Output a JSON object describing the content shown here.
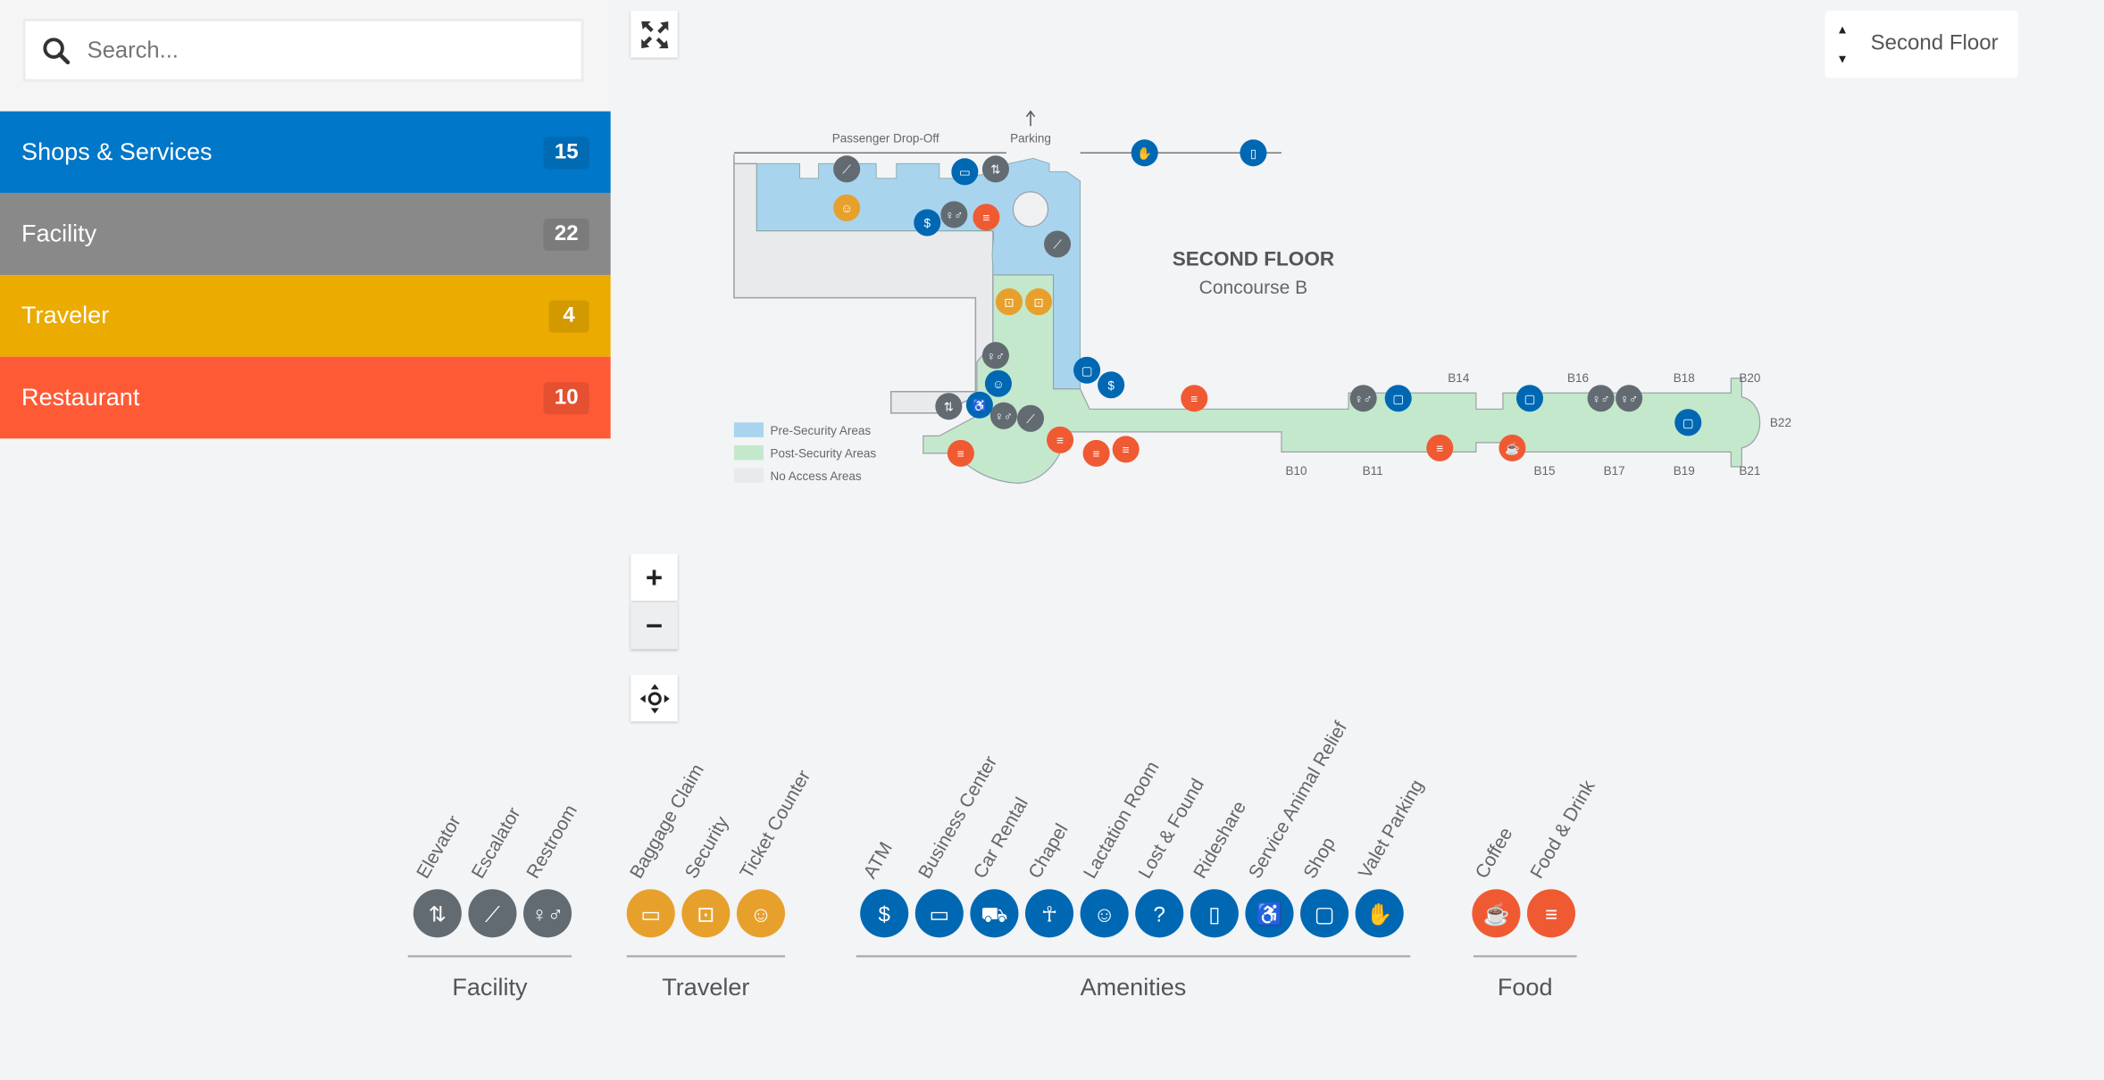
{
  "search": {
    "placeholder": "Search...",
    "value": ""
  },
  "categories": [
    {
      "label": "Shops & Services",
      "count": "15",
      "color": "#0077c8"
    },
    {
      "label": "Facility",
      "count": "22",
      "color": "#898989"
    },
    {
      "label": "Traveler",
      "count": "4",
      "color": "#ebab00"
    },
    {
      "label": "Restaurant",
      "count": "10",
      "color": "#ff5a36"
    }
  ],
  "floor_selector": {
    "value": "Second Floor"
  },
  "controls": {
    "zoom_in": "+",
    "zoom_out": "−"
  },
  "map": {
    "title": "SECOND FLOOR",
    "subtitle": "Concourse B",
    "labels": {
      "dropoff": "Passenger Drop-Off",
      "parking": "Parking"
    },
    "gates": [
      "B14",
      "B16",
      "B18",
      "B20",
      "B22",
      "B10",
      "B11",
      "B15",
      "B17",
      "B19",
      "B21"
    ],
    "area_legend": [
      {
        "label": "Pre-Security Areas",
        "color": "#a9d4ee"
      },
      {
        "label": "Post-Security Areas",
        "color": "#c4e8cc"
      },
      {
        "label": "No Access Areas",
        "color": "#e9eaec"
      }
    ],
    "markers": [
      {
        "icon": "escalator",
        "category": "facility"
      },
      {
        "icon": "business-center",
        "category": "amenities"
      },
      {
        "icon": "elevator",
        "category": "facility"
      },
      {
        "icon": "ticket-counter",
        "category": "traveler"
      },
      {
        "icon": "atm",
        "category": "amenities"
      },
      {
        "icon": "restroom",
        "category": "facility"
      },
      {
        "icon": "food-drink",
        "category": "food"
      },
      {
        "icon": "escalator",
        "category": "facility"
      },
      {
        "icon": "security",
        "category": "traveler"
      },
      {
        "icon": "security",
        "category": "traveler"
      },
      {
        "icon": "restroom",
        "category": "facility"
      },
      {
        "icon": "lactation-room",
        "category": "amenities"
      },
      {
        "icon": "shop",
        "category": "amenities"
      },
      {
        "icon": "atm",
        "category": "amenities"
      },
      {
        "icon": "elevator",
        "category": "facility"
      },
      {
        "icon": "service-animal-relief",
        "category": "amenities"
      },
      {
        "icon": "restroom",
        "category": "facility"
      },
      {
        "icon": "escalator",
        "category": "facility"
      },
      {
        "icon": "food-drink",
        "category": "food"
      },
      {
        "icon": "food-drink",
        "category": "food"
      },
      {
        "icon": "food-drink",
        "category": "food"
      },
      {
        "icon": "food-drink",
        "category": "food"
      },
      {
        "icon": "food-drink",
        "category": "food"
      },
      {
        "icon": "restroom",
        "category": "facility"
      },
      {
        "icon": "shop",
        "category": "amenities"
      },
      {
        "icon": "food-drink",
        "category": "food"
      },
      {
        "icon": "coffee",
        "category": "food"
      },
      {
        "icon": "shop",
        "category": "amenities"
      },
      {
        "icon": "restroom",
        "category": "facility"
      },
      {
        "icon": "restroom",
        "category": "facility"
      },
      {
        "icon": "shop",
        "category": "amenities"
      },
      {
        "icon": "valet-parking",
        "category": "amenities"
      },
      {
        "icon": "rideshare",
        "category": "amenities"
      }
    ]
  },
  "colors": {
    "facility": "#636b72",
    "traveler": "#e8a02d",
    "amenities": "#0068b3",
    "food": "#f05a33"
  },
  "legend": {
    "groups": [
      {
        "name": "Facility",
        "category": "facility",
        "items": [
          {
            "label": "Elevator",
            "icon": "elevator"
          },
          {
            "label": "Escalator",
            "icon": "escalator"
          },
          {
            "label": "Restroom",
            "icon": "restroom"
          }
        ]
      },
      {
        "name": "Traveler",
        "category": "traveler",
        "items": [
          {
            "label": "Baggage Claim",
            "icon": "baggage-claim"
          },
          {
            "label": "Security",
            "icon": "security"
          },
          {
            "label": "Ticket Counter",
            "icon": "ticket-counter"
          }
        ]
      },
      {
        "name": "Amenities",
        "category": "amenities",
        "items": [
          {
            "label": "ATM",
            "icon": "atm"
          },
          {
            "label": "Business Center",
            "icon": "business-center"
          },
          {
            "label": "Car Rental",
            "icon": "car-rental"
          },
          {
            "label": "Chapel",
            "icon": "chapel"
          },
          {
            "label": "Lactation Room",
            "icon": "lactation-room"
          },
          {
            "label": "Lost & Found",
            "icon": "lost-found"
          },
          {
            "label": "Rideshare",
            "icon": "rideshare"
          },
          {
            "label": "Service Animal Relief",
            "icon": "service-animal-relief"
          },
          {
            "label": "Shop",
            "icon": "shop"
          },
          {
            "label": "Valet Parking",
            "icon": "valet-parking"
          }
        ]
      },
      {
        "name": "Food",
        "category": "food",
        "items": [
          {
            "label": "Coffee",
            "icon": "coffee"
          },
          {
            "label": "Food & Drink",
            "icon": "food-drink"
          }
        ]
      }
    ]
  }
}
